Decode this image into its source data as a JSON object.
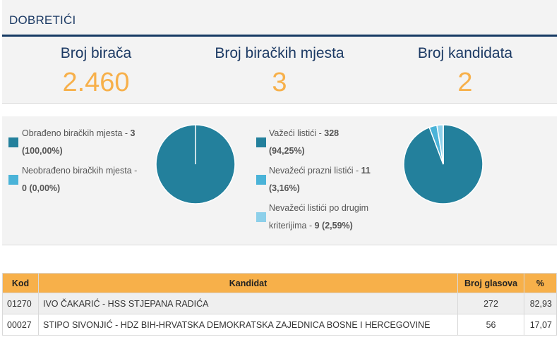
{
  "header": {
    "title": "DOBRETIĆI",
    "stats": [
      {
        "label": "Broj birača",
        "value": "2.460"
      },
      {
        "label": "Broj biračkih mjesta",
        "value": "3"
      },
      {
        "label": "Broj kandidata",
        "value": "2"
      }
    ]
  },
  "processing": {
    "legend": [
      {
        "text": "Obrađeno biračkih mjesta - ",
        "count": "3",
        "pct": "(100,00%)",
        "color": "#23809c"
      },
      {
        "text": "Neobrađeno biračkih mjesta - ",
        "count": "0",
        "pct": "(0,00%)",
        "color": "#4ab3d8"
      }
    ],
    "pie_values": [
      3,
      0
    ]
  },
  "ballots": {
    "legend": [
      {
        "text": "Važeći listići - ",
        "count": "328",
        "pct": "(94,25%)",
        "color": "#23809c"
      },
      {
        "text": "Nevažeći prazni listići - ",
        "count": "11",
        "pct": "(3,16%)",
        "color": "#4ab3d8"
      },
      {
        "text": "Nevažeći listići po drugim kriterijima - ",
        "count": "9",
        "pct": "(2,59%)",
        "color": "#8dd0ea"
      }
    ],
    "pie_values": [
      328,
      11,
      9
    ]
  },
  "results": {
    "columns": {
      "code": "Kod",
      "candidate": "Kandidat",
      "votes": "Broj glasova",
      "percent": "%"
    },
    "rows": [
      {
        "code": "01270",
        "candidate": "IVO ČAKARIĆ - HSS STJEPANA RADIĆA",
        "votes": "272",
        "percent": "82,93"
      },
      {
        "code": "00027",
        "candidate": "STIPO SIVONJIĆ - HDZ BIH-HRVATSKA DEMOKRATSKA ZAJEDNICA BOSNE I HERCEGOVINE",
        "votes": "56",
        "percent": "17,07"
      }
    ]
  }
}
